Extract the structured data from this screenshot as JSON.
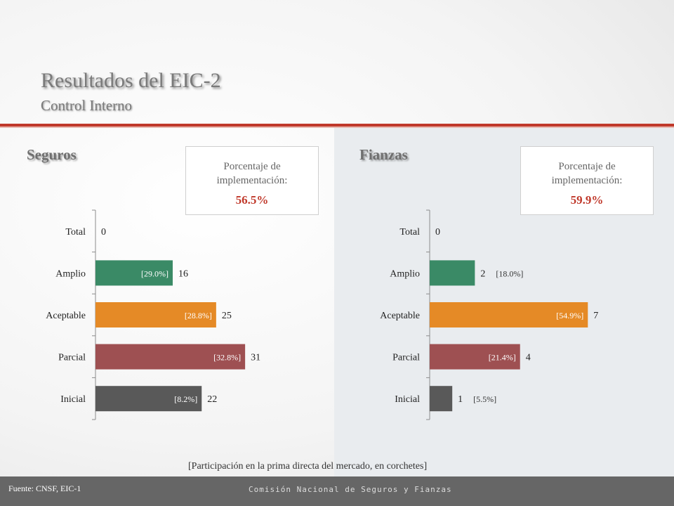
{
  "header": {
    "title": "Resultados del EIC-2",
    "subtitle": "Control Interno"
  },
  "panels": {
    "left": {
      "section": "Seguros",
      "pct_label_1": "Porcentaje de",
      "pct_label_2": "implementación:",
      "pct_value": "56.5%"
    },
    "right": {
      "section": "Fianzas",
      "pct_label_1": "Porcentaje de",
      "pct_label_2": "implementación:",
      "pct_value": "59.9%"
    }
  },
  "note": "[Participación en la prima directa del mercado, en corchetes]",
  "footer": {
    "source": "Fuente: CNSF, EIC-1",
    "org": "Comisión Nacional de Seguros y Fianzas"
  },
  "colors": {
    "Amplio": "#3a8a66",
    "Aceptable": "#e58a26",
    "Parcial": "#9e5052",
    "Inicial": "#595959",
    "accent": "#c0392b"
  },
  "chart_data": [
    {
      "type": "bar",
      "orientation": "horizontal",
      "categories": [
        "Total",
        "Amplio",
        "Aceptable",
        "Parcial",
        "Inicial"
      ],
      "values": [
        0,
        16,
        25,
        31,
        22
      ],
      "bar_labels": [
        "",
        "[29.0%]",
        "[28.8%]",
        "[32.8%]",
        "[8.2%]"
      ],
      "xlim": [
        0,
        40
      ]
    },
    {
      "type": "bar",
      "orientation": "horizontal",
      "categories": [
        "Total",
        "Amplio",
        "Aceptable",
        "Parcial",
        "Inicial"
      ],
      "values": [
        0,
        2,
        7,
        4,
        1
      ],
      "bar_labels": [
        "",
        "[18.0%]",
        "[54.9%]",
        "[21.4%]",
        "[5.5%]"
      ],
      "xlim": [
        0,
        8.7
      ]
    }
  ]
}
